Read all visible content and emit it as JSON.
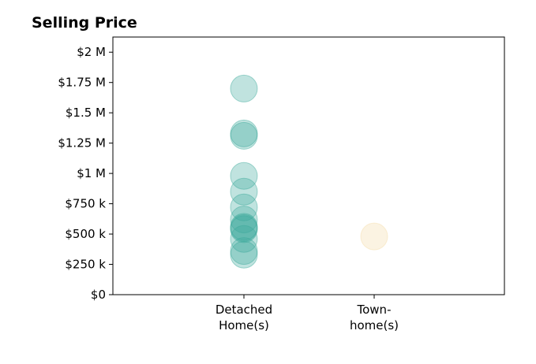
{
  "chart_data": {
    "type": "scatter",
    "title": "Selling Price",
    "xlabel": "",
    "ylabel": "",
    "ylim": [
      0,
      2125000
    ],
    "y_ticks": [
      {
        "value": 0,
        "label": "$0"
      },
      {
        "value": 250000,
        "label": "$250 k"
      },
      {
        "value": 500000,
        "label": "$500 k"
      },
      {
        "value": 750000,
        "label": "$750 k"
      },
      {
        "value": 1000000,
        "label": "$1 M"
      },
      {
        "value": 1250000,
        "label": "$1.25 M"
      },
      {
        "value": 1500000,
        "label": "$1.5 M"
      },
      {
        "value": 1750000,
        "label": "$1.75 M"
      },
      {
        "value": 2000000,
        "label": "$2 M"
      }
    ],
    "categories": [
      {
        "label_lines": [
          "Detached",
          "Home(s)"
        ]
      },
      {
        "label_lines": [
          "Town-",
          "home(s)"
        ]
      }
    ],
    "grid": false,
    "series": [
      {
        "color": "#3aa89a",
        "category_index": 0,
        "values": [
          1700000,
          1330000,
          1310000,
          980000,
          850000,
          720000,
          620000,
          560000,
          550000,
          540000,
          460000,
          360000,
          330000
        ]
      },
      {
        "color": "#f3dba6",
        "category_index": 1,
        "values": [
          480000
        ]
      }
    ]
  }
}
